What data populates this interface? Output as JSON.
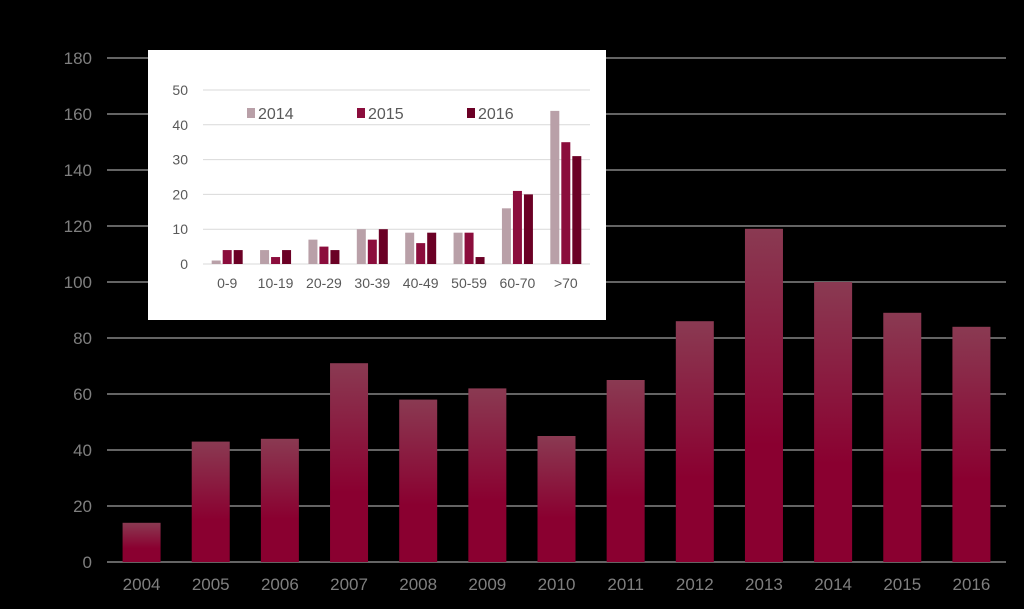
{
  "chart_data": [
    {
      "type": "bar",
      "categories": [
        "2004",
        "2005",
        "2006",
        "2007",
        "2008",
        "2009",
        "2010",
        "2011",
        "2012",
        "2013",
        "2014",
        "2015",
        "2016"
      ],
      "values": [
        14,
        43,
        44,
        71,
        58,
        62,
        45,
        65,
        86,
        119,
        100,
        89,
        84
      ],
      "ylim": [
        0,
        180
      ],
      "yticks": [
        "0",
        "20",
        "40",
        "60",
        "80",
        "100",
        "120",
        "140",
        "160",
        "180"
      ],
      "grid": true,
      "colors": {
        "bar_top": "#8a3a52",
        "bar_bottom": "#8a0030",
        "axis_text": "#7f7f7f",
        "grid": "#c8c8c8"
      }
    },
    {
      "type": "bar",
      "categories": [
        "0-9",
        "10-19",
        "20-29",
        "30-39",
        "40-49",
        "50-59",
        "60-70",
        ">70"
      ],
      "series": [
        {
          "name": "2014",
          "values": [
            1,
            4,
            7,
            10,
            9,
            9,
            16,
            44
          ],
          "color": "#b9a0a8"
        },
        {
          "name": "2015",
          "values": [
            4,
            2,
            5,
            7,
            6,
            9,
            21,
            35
          ],
          "color": "#8b0d3c"
        },
        {
          "name": "2016",
          "values": [
            4,
            4,
            4,
            10,
            9,
            2,
            20,
            31
          ],
          "color": "#6b0025"
        }
      ],
      "ylim": [
        0,
        50
      ],
      "yticks": [
        "0",
        "10",
        "20",
        "30",
        "40",
        "50"
      ],
      "grid": true,
      "legend": "top",
      "colors": {
        "background": "#ffffff",
        "axis_text": "#595959",
        "grid": "#d9d9d9"
      }
    }
  ]
}
